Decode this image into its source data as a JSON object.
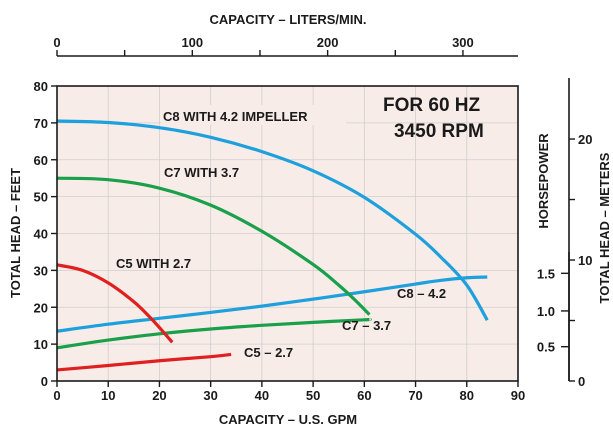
{
  "chart_data": {
    "type": "line",
    "annotation": [
      "FOR 60 HZ",
      "3450 RPM"
    ],
    "xlabel": "CAPACITY – U.S. GPM",
    "xlim": [
      0,
      90
    ],
    "x_ticks": [
      0,
      10,
      20,
      30,
      40,
      50,
      60,
      70,
      80,
      90
    ],
    "x2label": "CAPACITY – LITERS/MIN.",
    "x2_ticks": [
      0,
      100,
      200,
      300
    ],
    "x2_tick_labels": [
      "0",
      "100",
      "200",
      "300"
    ],
    "ylabel": "TOTAL HEAD – FEET",
    "ylim": [
      0,
      80
    ],
    "y_ticks": [
      0,
      10,
      20,
      30,
      40,
      50,
      60,
      70,
      80
    ],
    "hp_label": "HORSEPOWER",
    "hp_ticks": [
      {
        "label": "1.5",
        "feet": 29.2
      },
      {
        "label": "1.0",
        "feet": 19.0
      },
      {
        "label": "0.5",
        "feet": 9.3
      }
    ],
    "y2label": "TOTAL HEAD – METERS",
    "y2_ticks": [
      {
        "label": "0",
        "feet": 0
      },
      {
        "label": "10",
        "feet": 32.8
      },
      {
        "label": "20",
        "feet": 65.6
      }
    ],
    "grid": true,
    "series": [
      {
        "name": "C8 WITH 4.2 IMPELLER",
        "kind": "head",
        "color": "#1ea0dc",
        "x": [
          0,
          10,
          20,
          30,
          40,
          50,
          60,
          70,
          75,
          80,
          84
        ],
        "y": [
          70.5,
          70.1,
          68.7,
          66.1,
          62.2,
          57.0,
          49.8,
          39.8,
          33.5,
          26.0,
          16.5
        ]
      },
      {
        "name": "C7 WITH 3.7",
        "kind": "head",
        "color": "#1aa04a",
        "x": [
          0,
          10,
          20,
          30,
          40,
          50,
          55,
          58,
          61
        ],
        "y": [
          55.0,
          54.6,
          52.3,
          47.7,
          40.6,
          31.6,
          26.0,
          22.2,
          18.0
        ]
      },
      {
        "name": "C5 WITH 2.7",
        "kind": "head",
        "color": "#e02020",
        "x": [
          0,
          5,
          10,
          15,
          18,
          20,
          22.5
        ],
        "y": [
          31.5,
          30.0,
          26.6,
          21.5,
          17.5,
          14.5,
          10.5
        ]
      },
      {
        "name": "C8 - 4.2",
        "kind": "horsepower",
        "color": "#1ea0dc",
        "x": [
          0,
          10,
          20,
          30,
          40,
          50,
          60,
          70,
          75,
          80,
          84
        ],
        "y": [
          13.5,
          15.4,
          17.0,
          18.6,
          20.3,
          22.2,
          24.2,
          26.3,
          27.3,
          28.0,
          28.2
        ]
      },
      {
        "name": "C7 - 3.7",
        "kind": "horsepower",
        "color": "#1aa04a",
        "x": [
          0,
          10,
          20,
          30,
          40,
          50,
          60,
          61
        ],
        "y": [
          9.0,
          11.1,
          12.8,
          14.1,
          15.1,
          15.9,
          16.6,
          16.7
        ]
      },
      {
        "name": "C5 - 2.7",
        "kind": "horsepower",
        "color": "#e02020",
        "x": [
          0,
          10,
          20,
          30,
          34
        ],
        "y": [
          3.0,
          4.2,
          5.5,
          6.6,
          7.2
        ]
      }
    ],
    "labels": [
      "C8 WITH 4.2 IMPELLER",
      "C7 WITH 3.7",
      "C5 WITH 2.7",
      "C8 – 4.2",
      "C7 – 3.7",
      "C5 – 2.7"
    ]
  }
}
